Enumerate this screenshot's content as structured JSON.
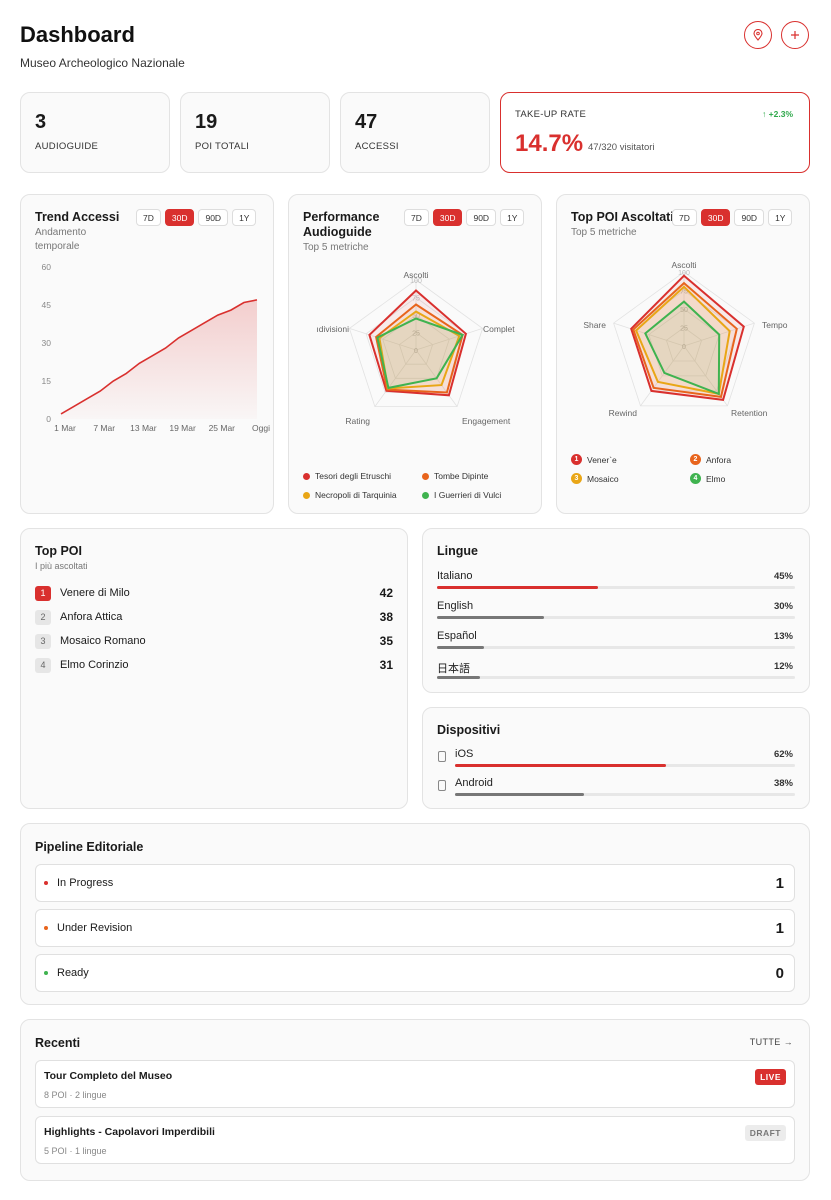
{
  "header": {
    "title": "Dashboard",
    "subtitle": "Museo Archeologico Nazionale"
  },
  "kpis": [
    {
      "value": "3",
      "label": "AUDIOGUIDE"
    },
    {
      "value": "19",
      "label": "POI TOTALI"
    },
    {
      "value": "47",
      "label": "ACCESSI"
    }
  ],
  "takeup": {
    "label": "TAKE-UP RATE",
    "delta": "↑ +2.3%",
    "value": "14.7%",
    "detail": "47/320 visitatori"
  },
  "ranges": [
    "7D",
    "30D",
    "90D",
    "1Y"
  ],
  "active_range": "30D",
  "trend": {
    "title": "Trend Accessi",
    "subtitle_line1": "Andamento",
    "subtitle_line2": "temporale",
    "chart_data": {
      "type": "area",
      "x": [
        "1 Mar",
        "3 Mar",
        "5 Mar",
        "7 Mar",
        "9 Mar",
        "11 Mar",
        "13 Mar",
        "15 Mar",
        "17 Mar",
        "19 Mar",
        "21 Mar",
        "23 Mar",
        "25 Mar",
        "27 Mar",
        "29 Mar",
        "Oggi"
      ],
      "x_tick_labels": [
        "1 Mar",
        "7 Mar",
        "13 Mar",
        "19 Mar",
        "25 Mar",
        "Oggi"
      ],
      "values": [
        2,
        5,
        8,
        11,
        15,
        18,
        22,
        25,
        28,
        32,
        35,
        38,
        41,
        43,
        46,
        47
      ],
      "y_ticks": [
        "0",
        "15",
        "30",
        "45",
        "60"
      ],
      "ylim": [
        0,
        60
      ],
      "color": "#d9302e"
    }
  },
  "performance": {
    "title_line1": "Performance",
    "title_line2": "Audioguide",
    "subtitle": "Top 5 metriche",
    "chart_data": {
      "type": "radar",
      "axes": [
        "Ascolti",
        "Completamento",
        "Engagement",
        "Rating",
        "Condivisioni"
      ],
      "axis_labels_shown": [
        "Ascolti",
        "Complet",
        "Engagement",
        "Rating",
        "ıdivisioni"
      ],
      "rticks": [
        "0",
        "25",
        "50",
        "75",
        "100"
      ],
      "series": [
        {
          "name": "Tesori degli Etruschi",
          "values": [
            85,
            75,
            80,
            72,
            70
          ],
          "color": "#d9302e"
        },
        {
          "name": "Tombe Dipinte",
          "values": [
            65,
            70,
            75,
            70,
            60
          ],
          "color": "#e8641c"
        },
        {
          "name": "Necropoli di Tarquinia",
          "values": [
            55,
            65,
            62,
            68,
            55
          ],
          "color": "#e9a616"
        },
        {
          "name": "I Guerrieri di Vulci",
          "values": [
            45,
            70,
            50,
            67,
            58
          ],
          "color": "#3fb34f"
        }
      ]
    }
  },
  "toppoi_radar": {
    "title": "Top POI Ascoltati",
    "subtitle": "Top 5 metriche",
    "chart_data": {
      "type": "radar",
      "axes": [
        "Ascolti",
        "Tempo",
        "Retention",
        "Rewind",
        "Share"
      ],
      "rticks": [
        "0",
        "25",
        "50",
        "75",
        "100"
      ],
      "series": [
        {
          "name": "Vener`e",
          "values": [
            95,
            85,
            90,
            75,
            75
          ],
          "color": "#d9302e",
          "n": "1"
        },
        {
          "name": "Anfora",
          "values": [
            85,
            75,
            85,
            70,
            72
          ],
          "color": "#e8641c",
          "n": "2"
        },
        {
          "name": "Mosaico",
          "values": [
            80,
            65,
            80,
            60,
            68
          ],
          "color": "#e9a616",
          "n": "3"
        },
        {
          "name": "Elmo",
          "values": [
            60,
            50,
            80,
            45,
            55
          ],
          "color": "#3fb34f",
          "n": "4"
        }
      ]
    }
  },
  "top_poi": {
    "title": "Top POI",
    "subtitle": "I più ascoltati",
    "items": [
      {
        "rank": "1",
        "name": "Venere di Milo",
        "value": "42"
      },
      {
        "rank": "2",
        "name": "Anfora Attica",
        "value": "38"
      },
      {
        "rank": "3",
        "name": "Mosaico Romano",
        "value": "35"
      },
      {
        "rank": "4",
        "name": "Elmo Corinzio",
        "value": "31"
      }
    ]
  },
  "lingue": {
    "title": "Lingue",
    "items": [
      {
        "name": "Italiano",
        "pct": "45%",
        "fraction": 0.45,
        "color": "#d9302e"
      },
      {
        "name": "English",
        "pct": "30%",
        "fraction": 0.3,
        "color": "#777777"
      },
      {
        "name": "Español",
        "pct": "13%",
        "fraction": 0.13,
        "color": "#777777"
      },
      {
        "name": "日本語",
        "pct": "12%",
        "fraction": 0.12,
        "color": "#777777"
      }
    ]
  },
  "dispositivi": {
    "title": "Dispositivi",
    "items": [
      {
        "name": "iOS",
        "pct": "62%",
        "fraction": 0.62,
        "color": "#d9302e"
      },
      {
        "name": "Android",
        "pct": "38%",
        "fraction": 0.38,
        "color": "#777777"
      }
    ]
  },
  "pipeline": {
    "title": "Pipeline Editoriale",
    "items": [
      {
        "name": "In Progress",
        "value": "1",
        "color": "#d9302e"
      },
      {
        "name": "Under Revision",
        "value": "1",
        "color": "#e8641c"
      },
      {
        "name": "Ready",
        "value": "0",
        "color": "#3fb34f"
      }
    ]
  },
  "recenti": {
    "title": "Recenti",
    "link": "TUTTE →",
    "items": [
      {
        "name": "Tour Completo del Museo",
        "meta": "8 POI · 2 lingue",
        "status": "LIVE"
      },
      {
        "name": "Highlights - Capolavori Imperdibili",
        "meta": "5 POI · 1 lingue",
        "status": "DRAFT"
      }
    ]
  }
}
